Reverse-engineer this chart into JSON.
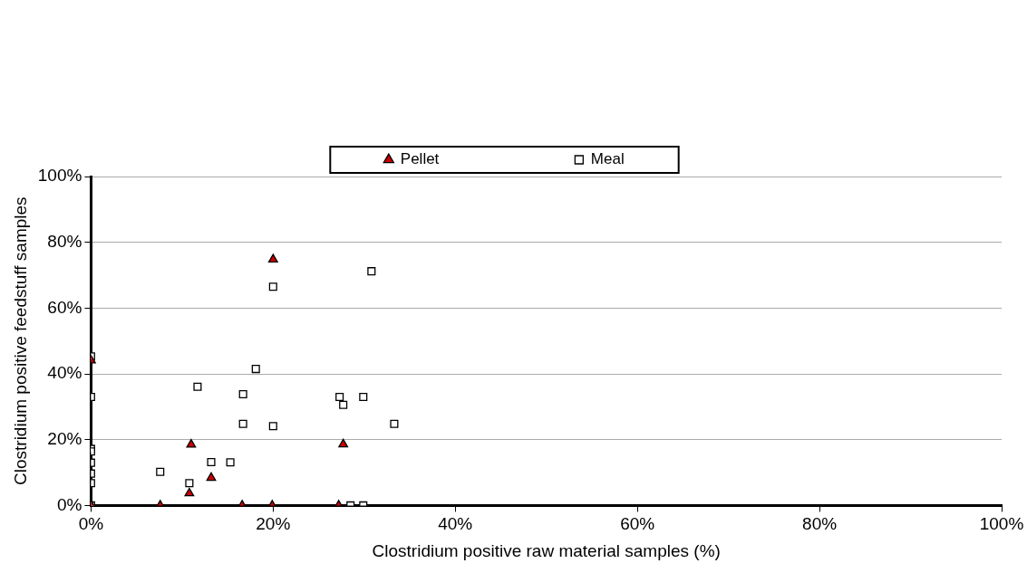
{
  "chart_data": {
    "type": "scatter",
    "xlabel": "Clostridium positive raw material samples (%)",
    "ylabel": "Clostridium positive feedstuff samples",
    "xlim": [
      0,
      100
    ],
    "ylim": [
      0,
      100
    ],
    "xticks": [
      {
        "value": 0,
        "label": "0%"
      },
      {
        "value": 20,
        "label": "20%"
      },
      {
        "value": 40,
        "label": "40%"
      },
      {
        "value": 60,
        "label": "60%"
      },
      {
        "value": 80,
        "label": "80%"
      },
      {
        "value": 100,
        "label": "100%"
      }
    ],
    "yticks": [
      {
        "value": 0,
        "label": "0%"
      },
      {
        "value": 20,
        "label": "20%"
      },
      {
        "value": 40,
        "label": "40%"
      },
      {
        "value": 60,
        "label": "60%"
      },
      {
        "value": 80,
        "label": "80%"
      },
      {
        "value": 100,
        "label": "100%"
      }
    ],
    "grid": "y",
    "legend": "top",
    "series": [
      {
        "name": "Pellet",
        "color": "#cc0000",
        "marker": "triangle",
        "x": [
          0,
          11,
          13.2,
          10.8,
          27.7,
          0,
          7.6,
          16.6,
          19.9,
          27.2,
          20
        ],
        "values": [
          44.1,
          18.5,
          8.4,
          3.7,
          18.6,
          0,
          0,
          0,
          0,
          0,
          74.8
        ]
      },
      {
        "name": "Meal",
        "color": "#ffffff",
        "marker": "square",
        "x": [
          0,
          18.1,
          11.7,
          16.7,
          0,
          27.3,
          29.9,
          27.7,
          16.7,
          20,
          33.3,
          0,
          0,
          0,
          13.2,
          15.3,
          0,
          7.6,
          0,
          10.8,
          0,
          28.5,
          29.9,
          30.8,
          20
        ],
        "values": [
          45.3,
          41.5,
          36.1,
          33.8,
          33,
          33,
          33,
          30.6,
          24.8,
          24.1,
          24.8,
          17.2,
          16.4,
          13,
          13.2,
          13.1,
          9.7,
          10.2,
          6.8,
          6.8,
          0,
          0,
          0,
          71.2,
          66.5
        ]
      }
    ]
  }
}
